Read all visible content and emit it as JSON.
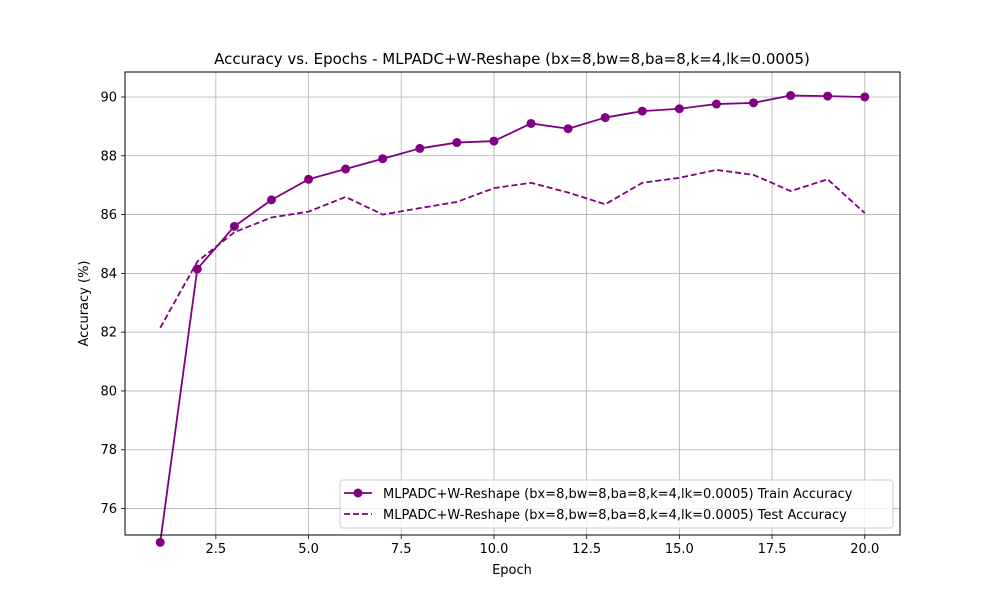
{
  "chart_data": {
    "type": "line",
    "title": "Accuracy vs. Epochs - MLPADC+W-Reshape (bx=8,bw=8,ba=8,k=4,lk=0.0005)",
    "xlabel": "Epoch",
    "ylabel": "Accuracy (%)",
    "xlim": [
      0.05,
      20.95
    ],
    "ylim": [
      75.1,
      90.85
    ],
    "xticks": [
      2.5,
      5.0,
      7.5,
      10.0,
      12.5,
      15.0,
      17.5,
      20.0
    ],
    "xtick_labels": [
      "2.5",
      "5.0",
      "7.5",
      "10.0",
      "12.5",
      "15.0",
      "17.5",
      "20.0"
    ],
    "yticks": [
      76,
      78,
      80,
      82,
      84,
      86,
      88,
      90
    ],
    "ytick_labels": [
      "76",
      "78",
      "80",
      "82",
      "84",
      "86",
      "88",
      "90"
    ],
    "grid": true,
    "legend_position": "bottom-right",
    "x": [
      1,
      2,
      3,
      4,
      5,
      6,
      7,
      8,
      9,
      10,
      11,
      12,
      13,
      14,
      15,
      16,
      17,
      18,
      19,
      20
    ],
    "series": [
      {
        "name": "MLPADC+W-Reshape (bx=8,bw=8,ba=8,k=4,lk=0.0005) Train Accuracy",
        "style": "solid-marker",
        "color": "#800080",
        "values": [
          74.85,
          84.15,
          85.6,
          86.5,
          87.2,
          87.55,
          87.9,
          88.25,
          88.45,
          88.5,
          89.1,
          88.92,
          89.3,
          89.52,
          89.6,
          89.76,
          89.8,
          90.05,
          90.03,
          90.0
        ]
      },
      {
        "name": "MLPADC+W-Reshape (bx=8,bw=8,ba=8,k=4,lk=0.0005) Test Accuracy",
        "style": "dashed",
        "color": "#800080",
        "values": [
          82.15,
          84.4,
          85.4,
          85.9,
          86.1,
          86.6,
          86.0,
          86.22,
          86.43,
          86.9,
          87.08,
          86.75,
          86.35,
          87.08,
          87.25,
          87.52,
          87.35,
          86.8,
          87.2,
          86.05
        ]
      }
    ]
  }
}
